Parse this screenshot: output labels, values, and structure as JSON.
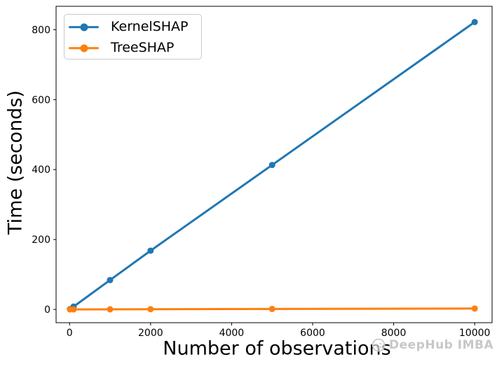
{
  "watermark": {
    "text": "DeepHub IMBA",
    "icon": "smiley-face-icon",
    "color": "#c7c7c7"
  },
  "colors": {
    "axis": "#000000",
    "background": "#ffffff",
    "legend_border": "#c9c9c9"
  },
  "chart_data": {
    "type": "line",
    "title": "",
    "xlabel": "Number of observations",
    "ylabel": "Time (seconds)",
    "x": [
      10,
      100,
      1000,
      2000,
      5000,
      10000
    ],
    "series": [
      {
        "name": "KernelSHAP",
        "color": "#1f77b4",
        "values": [
          1,
          8,
          84,
          168,
          413,
          822
        ]
      },
      {
        "name": "TreeSHAP",
        "color": "#ff7f0e",
        "values": [
          0.05,
          0.1,
          0.3,
          0.6,
          1.2,
          2.5
        ]
      }
    ],
    "xticks": [
      0,
      2000,
      4000,
      6000,
      8000,
      10000
    ],
    "xtick_labels": [
      "0",
      "2000",
      "4000",
      "6000",
      "8000",
      "10000"
    ],
    "yticks": [
      0,
      200,
      400,
      600,
      800
    ],
    "ytick_labels": [
      "0",
      "200",
      "400",
      "600",
      "800"
    ],
    "xlim": [
      -333,
      10430
    ],
    "ylim": [
      -38,
      867
    ],
    "grid": false,
    "legend": {
      "position": "upper-left",
      "entries": [
        "KernelSHAP",
        "TreeSHAP"
      ]
    },
    "marker": "circle",
    "line_width": 3,
    "marker_size": 9
  }
}
